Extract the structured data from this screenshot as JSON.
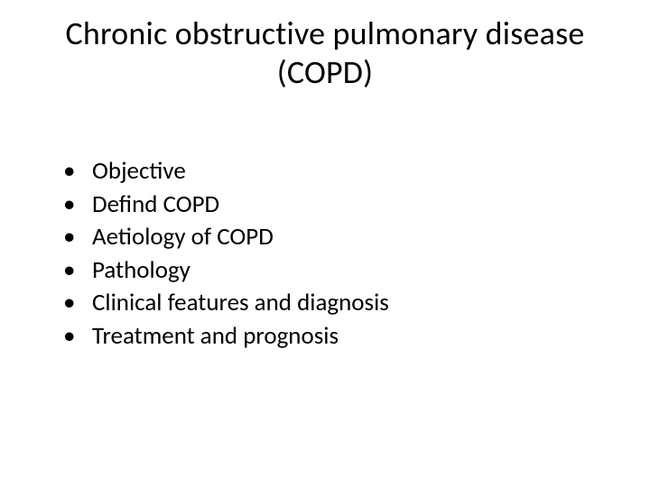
{
  "slide": {
    "title": "Chronic obstructive pulmonary disease (COPD)",
    "bullets": [
      "Objective",
      "Defind COPD",
      "Aetiology of COPD",
      "Pathology",
      "Clinical features and diagnosis",
      "Treatment and prognosis"
    ]
  },
  "style": {
    "background_color": "#ffffff",
    "text_color": "#000000",
    "title_fontsize": 36,
    "bullet_fontsize": 27,
    "font_family": "Calibri"
  }
}
